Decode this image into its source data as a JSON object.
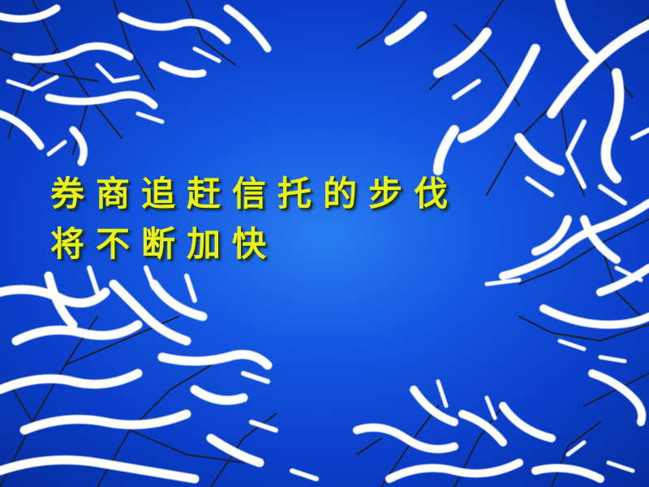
{
  "slide": {
    "headline_line1": "券商追赶信托的步伐",
    "headline_line2": "将不断加快"
  },
  "background": {
    "scene": "snow-covered-branches-against-blue-sky",
    "sky_color": "#1456e0",
    "snow_color": "#ffffff",
    "text_color": "#e9f01a"
  }
}
